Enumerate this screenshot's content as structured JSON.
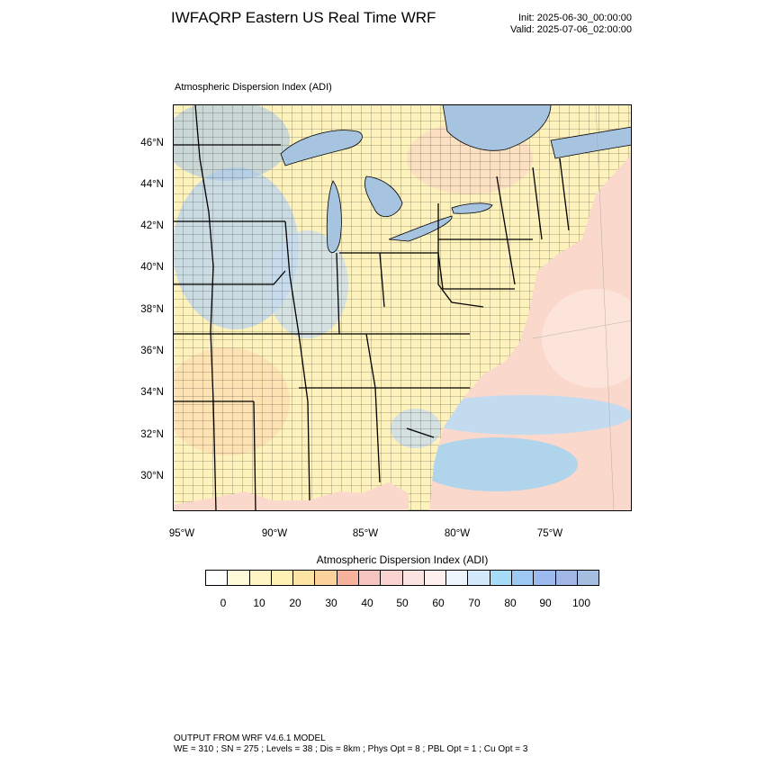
{
  "header": {
    "title": "IWFAQRP Eastern US Real Time WRF",
    "init": "Init: 2025-06-30_00:00:00",
    "valid": "Valid: 2025-07-06_02:00:00"
  },
  "map": {
    "field_title": "Atmospheric Dispersion Index   (ADI)",
    "lat_labels": [
      "46°N",
      "44°N",
      "42°N",
      "40°N",
      "38°N",
      "36°N",
      "34°N",
      "32°N",
      "30°N"
    ],
    "lon_labels": [
      "95°W",
      "90°W",
      "85°W",
      "80°W",
      "75°W"
    ],
    "colors": {
      "land_base": "#fdf1bc",
      "ocean_base": "#fbd8cc",
      "lake_base": "#a6c3df",
      "boundary": "#000000"
    }
  },
  "colorbar": {
    "title": "Atmospheric Dispersion Index  (ADI)",
    "labels": [
      "0",
      "10",
      "20",
      "30",
      "40",
      "50",
      "60",
      "70",
      "80",
      "90",
      "100"
    ],
    "colors": [
      "#ffffff",
      "#fffad8",
      "#fff5c4",
      "#fff0b4",
      "#fde4a4",
      "#fbd19c",
      "#f6b29c",
      "#f6c4c0",
      "#f7d2d0",
      "#fbe3e1",
      "#fdf0ee",
      "#eef4fb",
      "#d4eafa",
      "#a6dcf6",
      "#9cc8f2",
      "#9cbaee",
      "#a2b6e6",
      "#a4bee0"
    ]
  },
  "footer": {
    "line1": "OUTPUT FROM WRF V4.6.1 MODEL",
    "line2": "WE = 310 ; SN = 275 ; Levels = 38 ; Dis = 8km ; Phys Opt = 8 ; PBL Opt = 1 ; Cu Opt = 3"
  }
}
